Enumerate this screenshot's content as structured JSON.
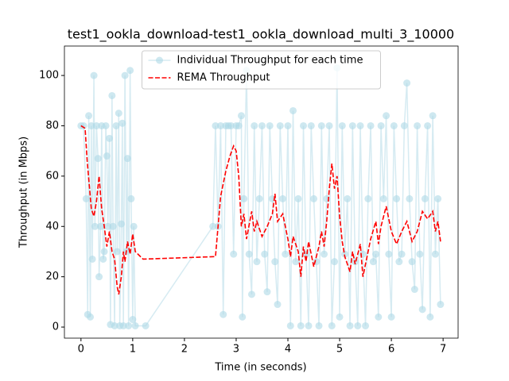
{
  "chart_data": {
    "type": "line",
    "title": "test1_ookla_download-test1_ookla_download_multi_3_10000",
    "xlabel": "Time (in seconds)",
    "ylabel": "Throughput (in Mbps)",
    "xlim": [
      -0.32,
      7.29
    ],
    "ylim": [
      -4.4,
      111.7
    ],
    "xticks": [
      0,
      1,
      2,
      3,
      4,
      5,
      6,
      7
    ],
    "yticks": [
      0,
      20,
      40,
      60,
      80,
      100
    ],
    "legend": "upper center",
    "grid": false,
    "series": [
      {
        "name": "Individual Throughput for each time",
        "color": "#add8e6",
        "marker": "o",
        "x": [
          0.0,
          0.05,
          0.1,
          0.13,
          0.15,
          0.18,
          0.2,
          0.22,
          0.25,
          0.27,
          0.3,
          0.33,
          0.35,
          0.38,
          0.4,
          0.43,
          0.45,
          0.48,
          0.5,
          0.52,
          0.55,
          0.57,
          0.6,
          0.62,
          0.65,
          0.68,
          0.7,
          0.73,
          0.75,
          0.78,
          0.8,
          0.82,
          0.85,
          0.88,
          0.9,
          0.92,
          0.95,
          0.97,
          1.0,
          1.02,
          1.05,
          1.25,
          2.55,
          2.6,
          2.65,
          2.7,
          2.75,
          2.8,
          2.85,
          2.9,
          2.95,
          3.0,
          3.05,
          3.1,
          3.12,
          3.15,
          3.2,
          3.25,
          3.3,
          3.35,
          3.4,
          3.45,
          3.5,
          3.55,
          3.6,
          3.65,
          3.7,
          3.75,
          3.8,
          3.85,
          3.9,
          3.95,
          4.0,
          4.05,
          4.1,
          4.15,
          4.2,
          4.25,
          4.3,
          4.35,
          4.4,
          4.45,
          4.5,
          4.55,
          4.6,
          4.65,
          4.7,
          4.75,
          4.8,
          4.85,
          4.9,
          4.95,
          5.0,
          5.05,
          5.1,
          5.15,
          5.2,
          5.25,
          5.3,
          5.35,
          5.4,
          5.45,
          5.5,
          5.55,
          5.6,
          5.65,
          5.7,
          5.75,
          5.8,
          5.85,
          5.9,
          5.95,
          6.0,
          6.05,
          6.1,
          6.15,
          6.2,
          6.25,
          6.3,
          6.35,
          6.4,
          6.45,
          6.5,
          6.55,
          6.6,
          6.65,
          6.7,
          6.75,
          6.8,
          6.85,
          6.9,
          6.95
        ],
        "values": [
          80,
          80,
          51,
          5,
          84,
          4,
          80,
          27,
          100,
          40,
          80,
          67,
          20,
          40,
          80,
          27,
          30,
          80,
          68,
          40,
          75,
          1,
          92,
          40,
          0.5,
          80,
          30,
          85,
          0.5,
          41,
          81,
          0.5,
          100,
          30,
          67,
          0.5,
          102,
          51,
          3,
          40,
          0.5,
          0.5,
          40,
          80,
          40,
          80,
          5,
          80,
          80,
          80,
          29,
          80,
          80,
          84,
          4,
          51,
          102,
          29,
          13,
          80,
          26,
          51,
          80,
          29,
          14,
          80,
          51,
          26,
          9,
          80,
          51,
          29,
          80,
          0.5,
          86,
          26,
          51,
          0.5,
          80,
          29,
          0.5,
          80,
          51,
          26,
          0.5,
          80,
          29,
          51,
          80,
          0.5,
          26,
          103,
          4,
          80,
          29,
          51,
          0.5,
          80,
          26,
          0.5,
          80,
          29,
          0.5,
          51,
          80,
          26,
          29,
          4,
          80,
          51,
          84,
          29,
          4,
          80,
          51,
          26,
          29,
          80,
          97,
          51,
          26,
          15,
          80,
          29,
          7,
          51,
          80,
          4,
          84,
          29,
          51,
          9
        ]
      },
      {
        "name": "REMA Throughput",
        "color": "#ff0000",
        "dash": "dashed",
        "x": [
          0,
          0.08,
          0.12,
          0.2,
          0.25,
          0.3,
          0.35,
          0.4,
          0.45,
          0.5,
          0.55,
          0.6,
          0.65,
          0.7,
          0.73,
          0.78,
          0.82,
          0.85,
          0.9,
          0.95,
          1.0,
          1.05,
          1.2,
          2.6,
          2.7,
          2.8,
          2.88,
          2.95,
          3.0,
          3.05,
          3.1,
          3.15,
          3.2,
          3.3,
          3.35,
          3.4,
          3.5,
          3.6,
          3.7,
          3.75,
          3.8,
          3.9,
          4.0,
          4.05,
          4.1,
          4.2,
          4.25,
          4.3,
          4.35,
          4.4,
          4.5,
          4.6,
          4.65,
          4.7,
          4.75,
          4.8,
          4.85,
          4.9,
          4.95,
          5.0,
          5.05,
          5.1,
          5.2,
          5.25,
          5.3,
          5.4,
          5.45,
          5.5,
          5.6,
          5.7,
          5.75,
          5.8,
          5.9,
          6.0,
          6.1,
          6.2,
          6.3,
          6.4,
          6.5,
          6.6,
          6.7,
          6.8,
          6.85,
          6.9,
          6.95
        ],
        "values": [
          80,
          79,
          66,
          47,
          44,
          50,
          60,
          47,
          40,
          32,
          38,
          30,
          27,
          16,
          13,
          20,
          30,
          26,
          34,
          29,
          37,
          30,
          27,
          28,
          52,
          62,
          68,
          72,
          70,
          60,
          40,
          45,
          35,
          46,
          38,
          42,
          36,
          40,
          45,
          53,
          42,
          45,
          35,
          28,
          36,
          30,
          20,
          32,
          26,
          34,
          24,
          32,
          38,
          32,
          42,
          55,
          65,
          55,
          60,
          44,
          34,
          28,
          22,
          30,
          25,
          33,
          20,
          25,
          35,
          42,
          33,
          40,
          48,
          38,
          33,
          38,
          42,
          34,
          38,
          46,
          43,
          46,
          38,
          42,
          34
        ]
      }
    ]
  }
}
